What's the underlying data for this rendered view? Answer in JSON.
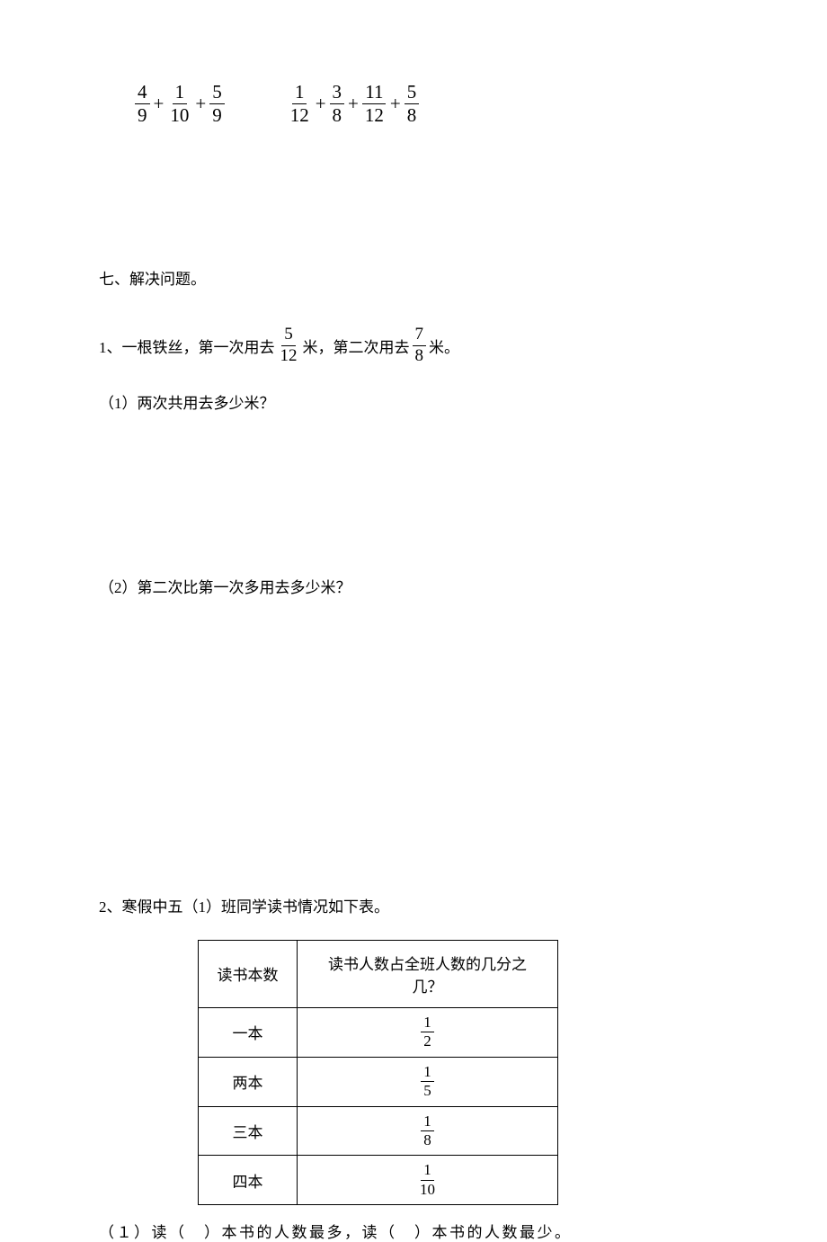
{
  "eq1": {
    "f1": {
      "n": "4",
      "d": "9"
    },
    "f2": {
      "n": "1",
      "d": "10"
    },
    "f3": {
      "n": "5",
      "d": "9"
    }
  },
  "eq2": {
    "f1": {
      "n": "1",
      "d": "12"
    },
    "f2": {
      "n": "3",
      "d": "8"
    },
    "f3": {
      "n": "11",
      "d": "12"
    },
    "f4": {
      "n": "5",
      "d": "8"
    }
  },
  "section7": "七、解决问题。",
  "q1": {
    "prefix": "1、一根铁丝，第一次用去",
    "f1": {
      "n": "5",
      "d": "12"
    },
    "mid": " 米，第二次用去",
    "f2": {
      "n": "7",
      "d": "8"
    },
    "suffix": " 米。",
    "sub1": "（1）两次共用去多少米？",
    "sub2": "（2）第二次比第一次多用去多少米？"
  },
  "q2": {
    "title": "2、寒假中五（1）班同学读书情况如下表。",
    "header1": "读书本数",
    "header2": "读书人数占全班人数的几分之几？",
    "rows": [
      {
        "label": "一本",
        "n": "1",
        "d": "2"
      },
      {
        "label": "两本",
        "n": "1",
        "d": "5"
      },
      {
        "label": "三本",
        "n": "1",
        "d": "8"
      },
      {
        "label": "四本",
        "n": "1",
        "d": "10"
      }
    ],
    "sub1": "（１）读（　）本书的人数最多，读（　）本书的人数最少。"
  },
  "plus": "+"
}
